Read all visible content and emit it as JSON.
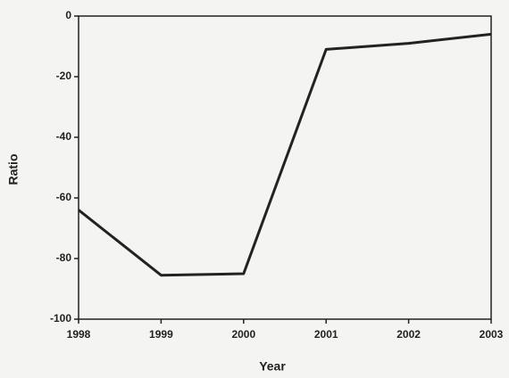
{
  "chart_data": {
    "type": "line",
    "x": [
      1998,
      1999,
      2000,
      2001,
      2002,
      2003
    ],
    "series": [
      {
        "color": "#222222",
        "values": [
          -64,
          -85.5,
          -85,
          -11,
          -9,
          -6
        ]
      }
    ],
    "xlim": [
      1998,
      2003
    ],
    "xticks": [
      1998,
      1999,
      2000,
      2001,
      2002,
      2003
    ],
    "ylim": [
      -100,
      0
    ],
    "yticks": [
      -100,
      -80,
      -60,
      -40,
      -20,
      0
    ],
    "x_label": "Year",
    "y_label": "Ratio",
    "grid": false
  }
}
